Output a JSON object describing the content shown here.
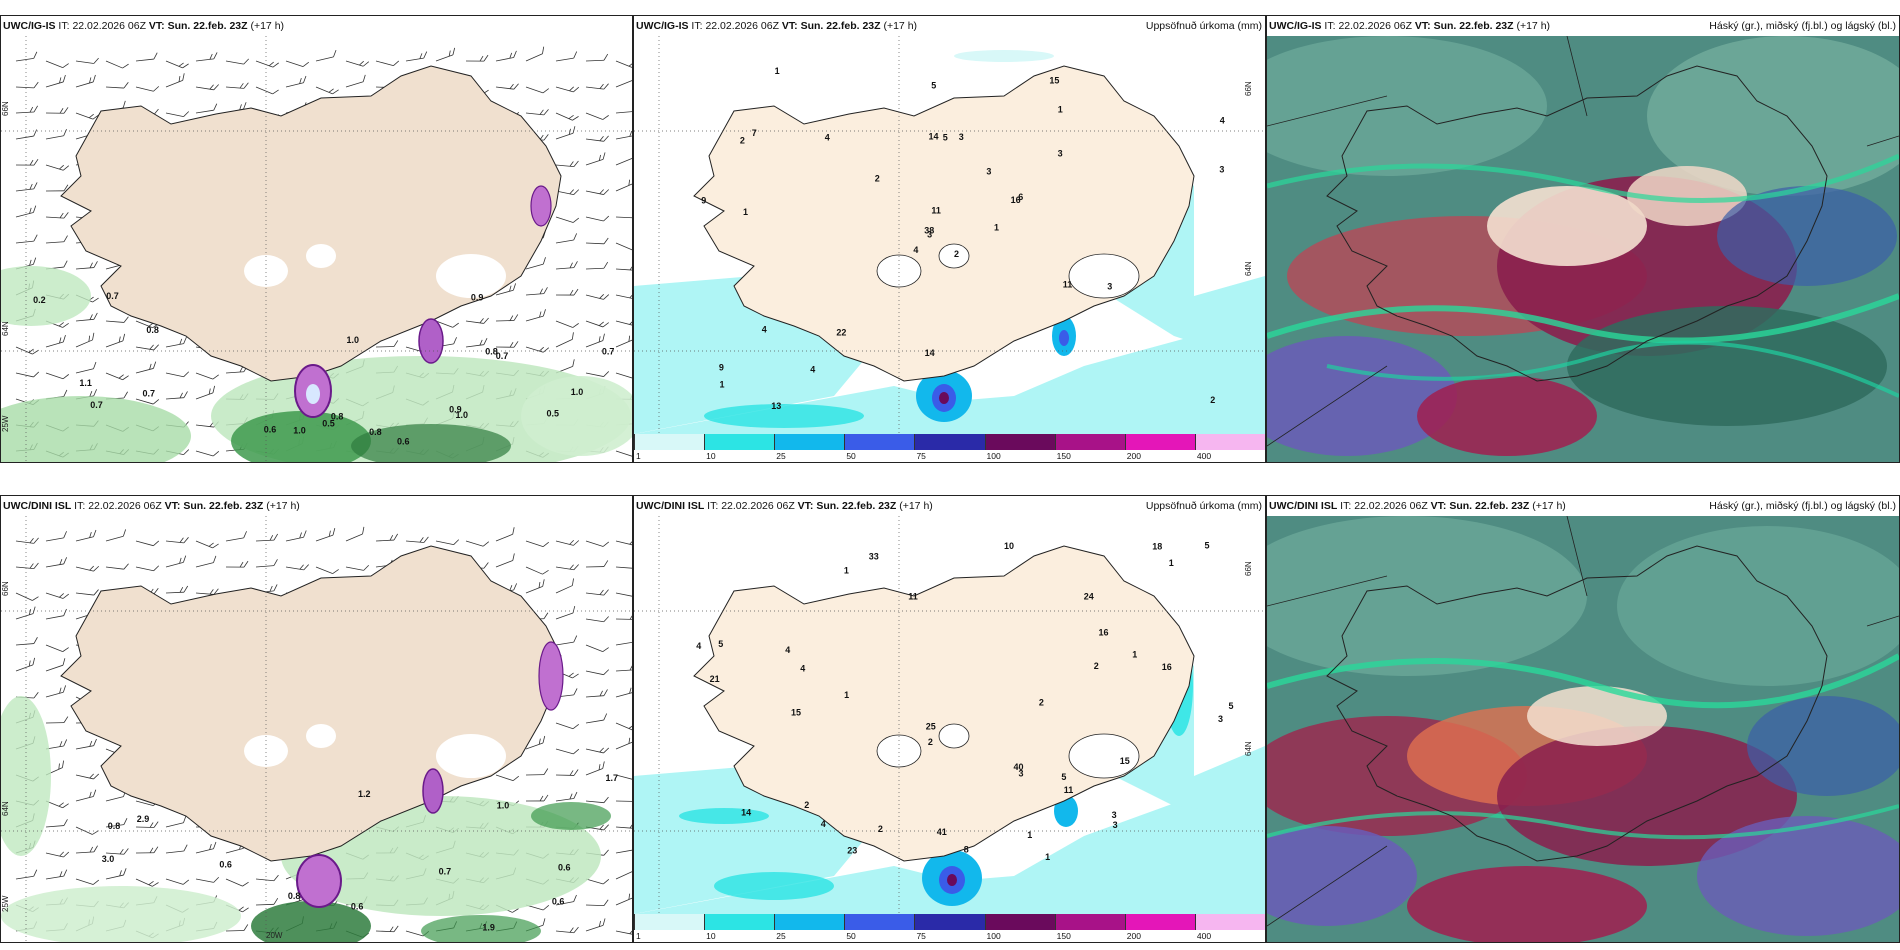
{
  "rows": [
    {
      "wind_panel": {
        "model": "UWC/IG-IS",
        "it_prefix": "IT:",
        "it": "22.02.2026 06Z",
        "vt_prefix": "VT:",
        "vt": "Sun. 22.feb. 23Z",
        "lead": "(+17 h)",
        "grid_labels": [
          "66N",
          "64N",
          "25W"
        ],
        "value_labels": [
          "0.6",
          "0.8",
          "1.0",
          "0.2",
          "0.7",
          "0.7",
          "0.5",
          "1.1",
          "0.8",
          "0.8",
          "0.7",
          "0.5",
          "1.0",
          "0.6",
          "0.9",
          "0.8",
          "0.9",
          "1.0",
          "1.0",
          "0.7",
          "0.7"
        ]
      },
      "precip_panel": {
        "model": "UWC/IG-IS",
        "it_prefix": "IT:",
        "it": "22.02.2026 06Z",
        "vt_prefix": "VT:",
        "vt": "Sun. 22.feb. 23Z",
        "lead": "(+17 h)",
        "title": "Uppsöfnuð úrkoma (mm)",
        "grid_labels": [
          "66N",
          "64N"
        ],
        "value_labels": [
          "2",
          "2",
          "3",
          "9",
          "16",
          "22",
          "15",
          "3",
          "1",
          "1",
          "1",
          "2",
          "1",
          "4",
          "4",
          "3",
          "13",
          "14",
          "3",
          "4",
          "2",
          "1",
          "4",
          "5",
          "6",
          "3",
          "7",
          "5",
          "9",
          "11",
          "3",
          "38",
          "14",
          "11",
          "4"
        ]
      },
      "cloud_panel": {
        "model": "UWC/IG-IS",
        "it_prefix": "IT:",
        "it": "22.02.2026 06Z",
        "vt_prefix": "VT:",
        "vt": "Sun. 22.feb. 23Z",
        "lead": "(+17 h)",
        "title": "Háský (gr.), miðský (fj.bl.) og lágský (bl.)"
      }
    },
    {
      "wind_panel": {
        "model": "UWC/DINI ISL",
        "it_prefix": "IT:",
        "it": "22.02.2026 06Z",
        "vt_prefix": "VT:",
        "vt": "Sun. 22.feb. 23Z",
        "lead": "(+17 h)",
        "grid_labels": [
          "66N",
          "64N",
          "25W",
          "20W"
        ],
        "value_labels": [
          "1.2",
          "0.7",
          "0.6",
          "3.0",
          "2.9",
          "0.8",
          "1.0",
          "0.6",
          "0.6",
          "0.6",
          "0.8",
          "1.7",
          "1.9"
        ]
      },
      "precip_panel": {
        "model": "UWC/DINI ISL",
        "it_prefix": "IT:",
        "it": "22.02.2026 06Z",
        "vt_prefix": "VT:",
        "vt": "Sun. 22.feb. 23Z",
        "lead": "(+17 h)",
        "title": "Uppsöfnuð úrkoma (mm)",
        "grid_labels": [
          "66N",
          "64N"
        ],
        "value_labels": [
          "1",
          "1",
          "2",
          "4",
          "1",
          "1",
          "3",
          "1",
          "2",
          "4",
          "14",
          "4",
          "25",
          "40",
          "2",
          "18",
          "21",
          "1",
          "15",
          "16",
          "3",
          "3",
          "23",
          "3",
          "2",
          "16",
          "15",
          "4",
          "8",
          "11",
          "11",
          "5",
          "24",
          "2",
          "33",
          "41",
          "10",
          "5",
          "5",
          "5"
        ]
      },
      "cloud_panel": {
        "model": "UWC/DINI ISL",
        "it_prefix": "IT:",
        "it": "22.02.2026 06Z",
        "vt_prefix": "VT:",
        "vt": "Sun. 22.feb. 23Z",
        "lead": "(+17 h)",
        "title": "Háský (gr.), miðský (fj.bl.) og lágský (bl.)"
      }
    }
  ],
  "precip_colorbar": {
    "labels": [
      "1",
      "10",
      "25",
      "50",
      "75",
      "100",
      "150",
      "200",
      "400"
    ],
    "colors": [
      "#d8f8f8",
      "#2ce4e4",
      "#12b8ec",
      "#3a5ce8",
      "#2a2aa8",
      "#6a0a5c",
      "#a81288",
      "#e416b8",
      "#f6b6f0"
    ]
  }
}
